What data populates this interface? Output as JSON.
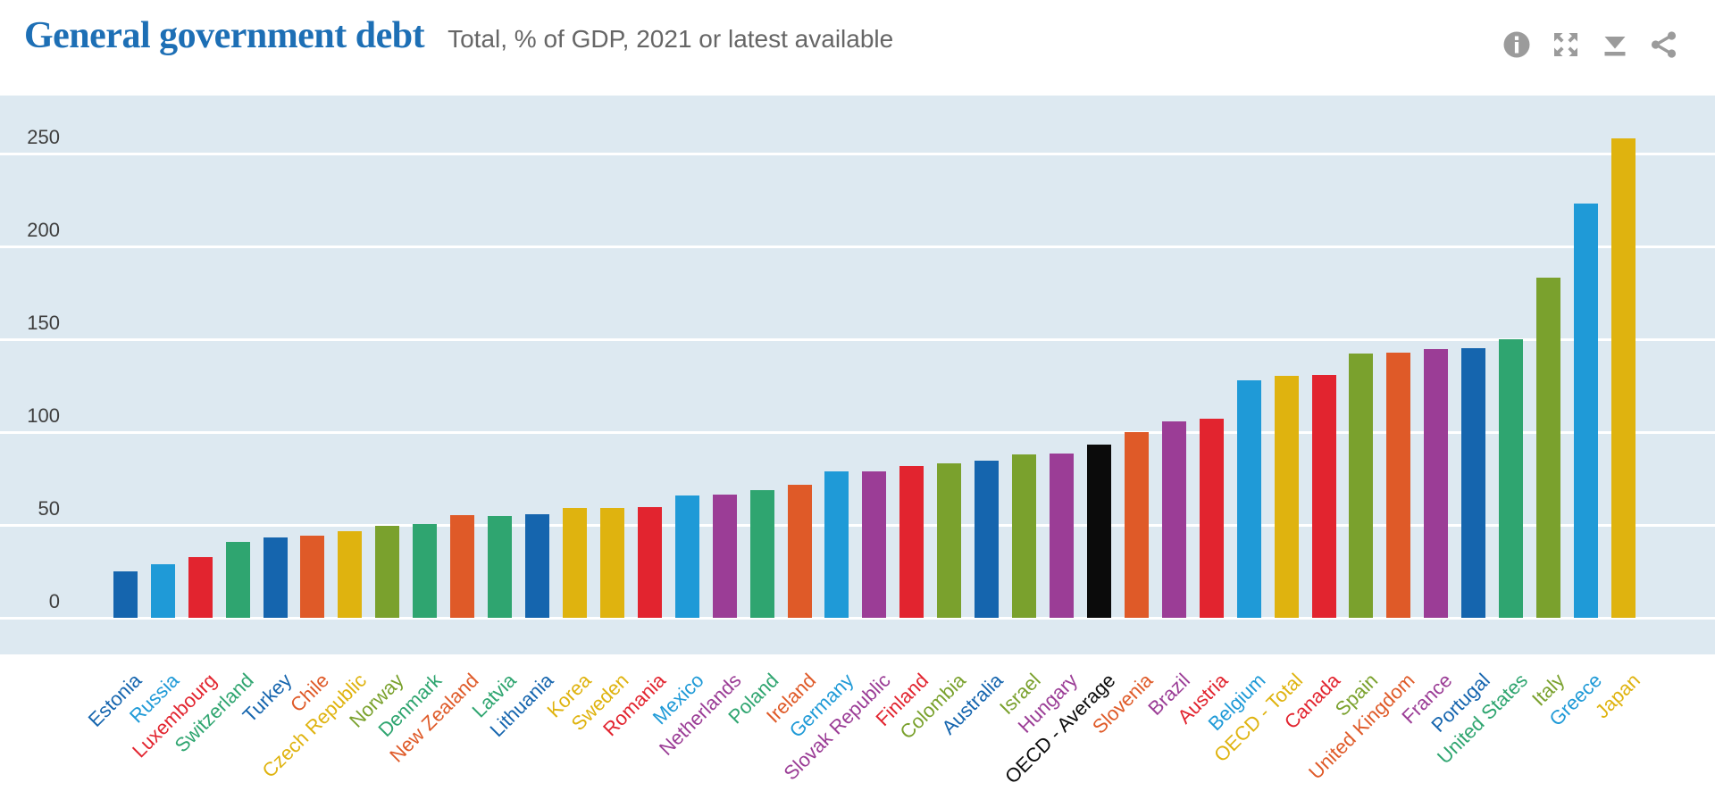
{
  "header": {
    "title": "General government debt",
    "subtitle": "Total, % of GDP, 2021 or latest available"
  },
  "toolbar": {
    "icons": [
      "info-icon",
      "fullscreen-icon",
      "download-icon",
      "share-icon"
    ],
    "icon_color": "#9b9b9b"
  },
  "colors": {
    "title_blue": "#1d6fb5",
    "subtitle_gray": "#666666",
    "axis_label_gray": "#3f3f3f",
    "plot_background": "#dde9f1",
    "gridline": "#ffffff"
  },
  "chart_data": {
    "type": "bar",
    "title": "General government debt",
    "subtitle": "Total, % of GDP, 2021 or latest available",
    "unit": "% of GDP",
    "xlabel": "",
    "ylabel": "",
    "ylim": [
      0,
      270
    ],
    "y_ticks": [
      0,
      50,
      100,
      150,
      200,
      250
    ],
    "grid": true,
    "legend": "none",
    "palette": {
      "dark-blue": "#1565ae",
      "light-blue": "#1f9ad7",
      "red": "#e2242f",
      "green": "#2fa570",
      "orange": "#df5a28",
      "yellow": "#dfb30f",
      "olive": "#7aa12d",
      "purple": "#9b3d96",
      "black": "#0b0b0b"
    },
    "bars": [
      {
        "label": "Estonia",
        "value": 24.8,
        "color": "dark-blue"
      },
      {
        "label": "Russia",
        "value": 28.7,
        "color": "light-blue"
      },
      {
        "label": "Luxembourg",
        "value": 32.7,
        "color": "red"
      },
      {
        "label": "Switzerland",
        "value": 40.8,
        "color": "green"
      },
      {
        "label": "Turkey",
        "value": 43.2,
        "color": "dark-blue"
      },
      {
        "label": "Chile",
        "value": 44.0,
        "color": "orange"
      },
      {
        "label": "Czech Republic",
        "value": 46.5,
        "color": "yellow"
      },
      {
        "label": "Norway",
        "value": 49.7,
        "color": "olive"
      },
      {
        "label": "Denmark",
        "value": 50.5,
        "color": "green"
      },
      {
        "label": "New Zealand",
        "value": 55.2,
        "color": "orange"
      },
      {
        "label": "Latvia",
        "value": 55.0,
        "color": "green"
      },
      {
        "label": "Lithuania",
        "value": 55.9,
        "color": "dark-blue"
      },
      {
        "label": "Korea",
        "value": 59.1,
        "color": "yellow"
      },
      {
        "label": "Sweden",
        "value": 59.1,
        "color": "yellow"
      },
      {
        "label": "Romania",
        "value": 59.8,
        "color": "red"
      },
      {
        "label": "Mexico",
        "value": 66.0,
        "color": "light-blue"
      },
      {
        "label": "Netherlands",
        "value": 66.3,
        "color": "purple"
      },
      {
        "label": "Poland",
        "value": 68.6,
        "color": "green"
      },
      {
        "label": "Ireland",
        "value": 71.8,
        "color": "orange"
      },
      {
        "label": "Germany",
        "value": 78.7,
        "color": "light-blue"
      },
      {
        "label": "Slovak Republic",
        "value": 79.0,
        "color": "purple"
      },
      {
        "label": "Finland",
        "value": 81.7,
        "color": "red"
      },
      {
        "label": "Colombia",
        "value": 83.1,
        "color": "olive"
      },
      {
        "label": "Australia",
        "value": 84.7,
        "color": "dark-blue"
      },
      {
        "label": "Israel",
        "value": 88.0,
        "color": "olive"
      },
      {
        "label": "Hungary",
        "value": 88.3,
        "color": "purple"
      },
      {
        "label": "OECD - Average",
        "value": 93.5,
        "color": "black"
      },
      {
        "label": "Slovenia",
        "value": 100.2,
        "color": "orange"
      },
      {
        "label": "Brazil",
        "value": 106.0,
        "color": "purple"
      },
      {
        "label": "Austria",
        "value": 107.1,
        "color": "red"
      },
      {
        "label": "Belgium",
        "value": 127.7,
        "color": "light-blue"
      },
      {
        "label": "OECD - Total",
        "value": 130.5,
        "color": "yellow"
      },
      {
        "label": "Canada",
        "value": 131.0,
        "color": "red"
      },
      {
        "label": "Spain",
        "value": 142.3,
        "color": "olive"
      },
      {
        "label": "United Kingdom",
        "value": 142.7,
        "color": "orange"
      },
      {
        "label": "France",
        "value": 144.7,
        "color": "purple"
      },
      {
        "label": "Portugal",
        "value": 145.2,
        "color": "dark-blue"
      },
      {
        "label": "United States",
        "value": 150.0,
        "color": "green"
      },
      {
        "label": "Italy",
        "value": 183.0,
        "color": "olive"
      },
      {
        "label": "Greece",
        "value": 223.0,
        "color": "light-blue"
      },
      {
        "label": "Japan",
        "value": 258.0,
        "color": "yellow"
      }
    ]
  }
}
